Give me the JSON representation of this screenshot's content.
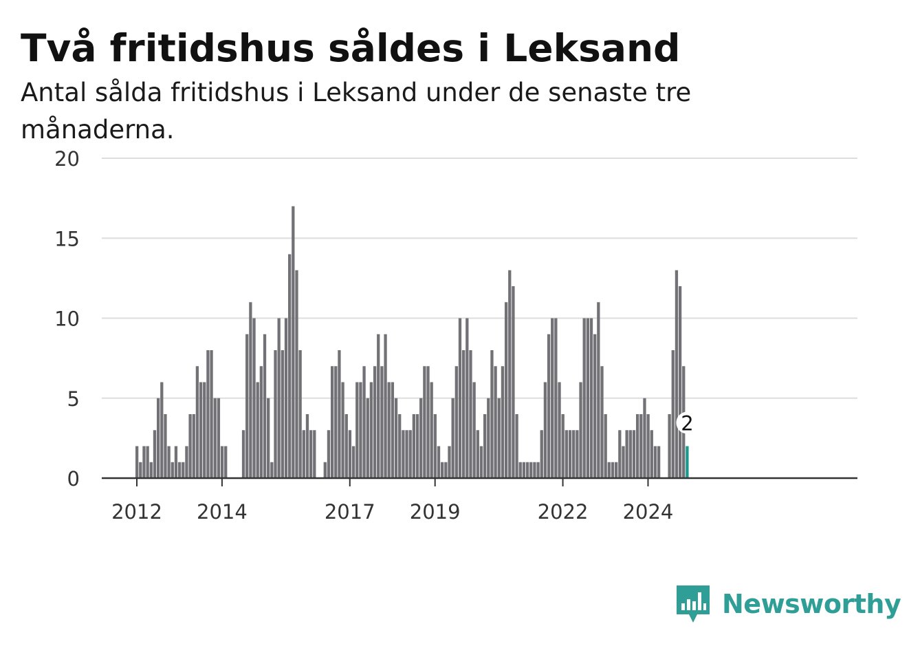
{
  "title": "Två fritidshus såldes i Leksand",
  "subtitle": "Antal sålda fritidshus i Leksand under de senaste tre månaderna.",
  "brand": {
    "name": "Newsworthy",
    "logo_icon": "bar-chart-speech-bubble-icon",
    "color": "#2e9e96"
  },
  "chart_data": {
    "type": "bar",
    "x_tick_labels": [
      "2012",
      "2014",
      "2017",
      "2019",
      "2022",
      "2024"
    ],
    "y_tick_labels": [
      "0",
      "5",
      "10",
      "15",
      "20"
    ],
    "ylim": [
      0,
      20
    ],
    "grid": "horizontal",
    "colors": {
      "bar": "#727176",
      "highlight": "#1a9a8f",
      "grid": "#dddddd",
      "axis": "#333333"
    },
    "highlight_label": "2",
    "series": [
      {
        "values": [
          2,
          1,
          2,
          2,
          1,
          3,
          5,
          6,
          4,
          2,
          1,
          2,
          1,
          1,
          2,
          4,
          4,
          7,
          6,
          6,
          8,
          8,
          5,
          5,
          2,
          2,
          0,
          0,
          0,
          0,
          3,
          9,
          11,
          10,
          6,
          7,
          9,
          5,
          1,
          8,
          10,
          8,
          10,
          14,
          17,
          13,
          8,
          3,
          4,
          3,
          3,
          0,
          0,
          1,
          3,
          7,
          7,
          8,
          6,
          4,
          3,
          2,
          6,
          6,
          7,
          5,
          6,
          7,
          9,
          7,
          9,
          6,
          6,
          5,
          4,
          3,
          3,
          3,
          4,
          4,
          5,
          7,
          7,
          6,
          4,
          2,
          1,
          1,
          2,
          5,
          7,
          10,
          8,
          10,
          8,
          6,
          3,
          2,
          4,
          5,
          8,
          7,
          5,
          7,
          11,
          13,
          12,
          4,
          1,
          1,
          1,
          1,
          1,
          1,
          3,
          6,
          9,
          10,
          10,
          6,
          4,
          3,
          3,
          3,
          3,
          6,
          10,
          10,
          10,
          9,
          11,
          7,
          4,
          1,
          1,
          1,
          3,
          2,
          3,
          3,
          3,
          4,
          4,
          5,
          4,
          3,
          2,
          2,
          0,
          0,
          4,
          8,
          13,
          12,
          7,
          2
        ]
      }
    ]
  }
}
